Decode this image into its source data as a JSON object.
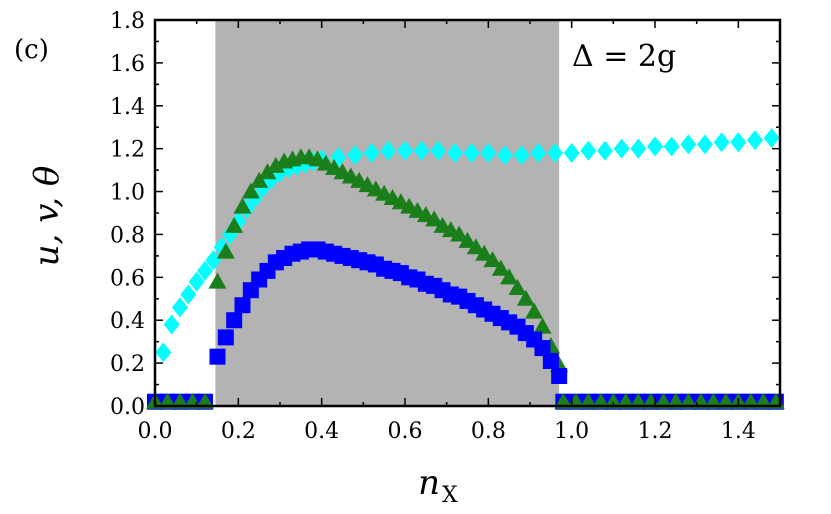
{
  "chart_data": {
    "type": "scatter",
    "panel_label": "(c)",
    "annotation": "Δ = 2g",
    "xlabel": "n",
    "xlabel_sub": "X",
    "ylabel": "u, v, θ",
    "xlim": [
      0.0,
      1.5
    ],
    "ylim": [
      0.0,
      1.8
    ],
    "xticks": [
      "0.0",
      "0.2",
      "0.4",
      "0.6",
      "0.8",
      "1.0",
      "1.2",
      "1.4"
    ],
    "yticks": [
      "0.0",
      "0.2",
      "0.4",
      "0.6",
      "0.8",
      "1.0",
      "1.2",
      "1.4",
      "1.6",
      "1.8"
    ],
    "grid": false,
    "shaded_region": {
      "x0": 0.145,
      "x1": 0.97,
      "color": "#b3b3b3"
    },
    "series": [
      {
        "marker": "diamond",
        "color": "#00ffff",
        "x": [
          0.02,
          0.04,
          0.06,
          0.08,
          0.1,
          0.12,
          0.14,
          0.16,
          0.18,
          0.2,
          0.22,
          0.24,
          0.26,
          0.28,
          0.3,
          0.32,
          0.34,
          0.36,
          0.38,
          0.4,
          0.44,
          0.48,
          0.52,
          0.56,
          0.6,
          0.64,
          0.68,
          0.72,
          0.76,
          0.8,
          0.84,
          0.88,
          0.92,
          0.96,
          1.0,
          1.04,
          1.08,
          1.12,
          1.16,
          1.2,
          1.24,
          1.28,
          1.32,
          1.36,
          1.4,
          1.44,
          1.48
        ],
        "y": [
          0.25,
          0.38,
          0.46,
          0.52,
          0.58,
          0.63,
          0.68,
          0.74,
          0.8,
          0.86,
          0.92,
          0.97,
          1.02,
          1.06,
          1.09,
          1.11,
          1.12,
          1.13,
          1.14,
          1.15,
          1.16,
          1.17,
          1.18,
          1.19,
          1.19,
          1.19,
          1.19,
          1.18,
          1.18,
          1.18,
          1.17,
          1.17,
          1.18,
          1.18,
          1.18,
          1.19,
          1.19,
          1.2,
          1.2,
          1.21,
          1.21,
          1.22,
          1.22,
          1.23,
          1.23,
          1.24,
          1.25
        ]
      },
      {
        "marker": "triangle",
        "color": "#1a7f1a",
        "x": [
          0.15,
          0.17,
          0.19,
          0.21,
          0.23,
          0.25,
          0.27,
          0.29,
          0.31,
          0.33,
          0.35,
          0.37,
          0.39,
          0.41,
          0.43,
          0.45,
          0.47,
          0.49,
          0.51,
          0.53,
          0.55,
          0.57,
          0.59,
          0.61,
          0.63,
          0.65,
          0.67,
          0.69,
          0.71,
          0.73,
          0.75,
          0.77,
          0.79,
          0.81,
          0.83,
          0.85,
          0.87,
          0.89,
          0.91,
          0.93,
          0.95,
          0.97
        ],
        "y": [
          0.58,
          0.72,
          0.84,
          0.93,
          1.0,
          1.05,
          1.09,
          1.12,
          1.14,
          1.15,
          1.16,
          1.16,
          1.15,
          1.13,
          1.11,
          1.09,
          1.07,
          1.05,
          1.03,
          1.01,
          0.99,
          0.97,
          0.95,
          0.93,
          0.91,
          0.89,
          0.87,
          0.84,
          0.82,
          0.8,
          0.77,
          0.74,
          0.71,
          0.68,
          0.64,
          0.6,
          0.55,
          0.5,
          0.44,
          0.37,
          0.28,
          0.19
        ]
      },
      {
        "marker": "square",
        "color": "#0000ff",
        "x": [
          0.15,
          0.17,
          0.19,
          0.21,
          0.23,
          0.25,
          0.27,
          0.29,
          0.31,
          0.33,
          0.35,
          0.37,
          0.39,
          0.41,
          0.43,
          0.45,
          0.47,
          0.49,
          0.51,
          0.53,
          0.55,
          0.57,
          0.59,
          0.61,
          0.63,
          0.65,
          0.67,
          0.69,
          0.71,
          0.73,
          0.75,
          0.77,
          0.79,
          0.81,
          0.83,
          0.85,
          0.87,
          0.89,
          0.91,
          0.93,
          0.95,
          0.97
        ],
        "y": [
          0.23,
          0.32,
          0.4,
          0.47,
          0.54,
          0.59,
          0.63,
          0.67,
          0.69,
          0.71,
          0.72,
          0.73,
          0.73,
          0.72,
          0.71,
          0.7,
          0.69,
          0.68,
          0.67,
          0.66,
          0.64,
          0.63,
          0.62,
          0.6,
          0.59,
          0.57,
          0.56,
          0.54,
          0.52,
          0.51,
          0.49,
          0.47,
          0.45,
          0.43,
          0.41,
          0.39,
          0.37,
          0.34,
          0.31,
          0.27,
          0.21,
          0.14
        ]
      },
      {
        "marker": "square",
        "color": "#0000ff",
        "x": [
          0.0,
          0.03,
          0.06,
          0.09,
          0.12,
          0.98,
          1.01,
          1.04,
          1.07,
          1.1,
          1.13,
          1.16,
          1.19,
          1.22,
          1.25,
          1.28,
          1.31,
          1.34,
          1.37,
          1.4,
          1.43,
          1.46,
          1.49
        ],
        "y": [
          0.02,
          0.02,
          0.02,
          0.02,
          0.02,
          0.02,
          0.02,
          0.02,
          0.02,
          0.02,
          0.02,
          0.02,
          0.02,
          0.02,
          0.02,
          0.02,
          0.02,
          0.02,
          0.02,
          0.02,
          0.02,
          0.02,
          0.02
        ]
      },
      {
        "marker": "triangle",
        "color": "#1a7f1a",
        "x": [
          0.0,
          0.03,
          0.06,
          0.09,
          0.12,
          0.98,
          1.01,
          1.04,
          1.07,
          1.1,
          1.13,
          1.16,
          1.19,
          1.22,
          1.25,
          1.28,
          1.31,
          1.34,
          1.37,
          1.4,
          1.43,
          1.46,
          1.49
        ],
        "y": [
          0.02,
          0.02,
          0.02,
          0.02,
          0.02,
          0.02,
          0.02,
          0.02,
          0.02,
          0.02,
          0.02,
          0.02,
          0.02,
          0.02,
          0.02,
          0.02,
          0.02,
          0.02,
          0.02,
          0.02,
          0.02,
          0.02,
          0.02
        ]
      }
    ]
  }
}
